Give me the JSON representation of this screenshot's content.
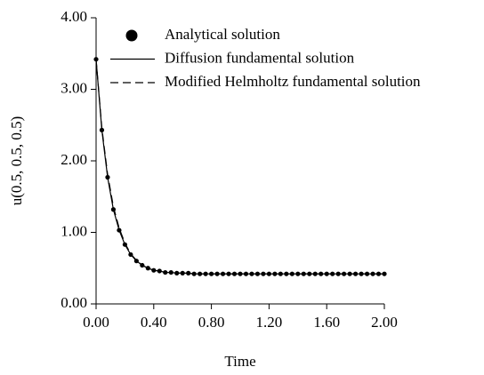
{
  "chart_data": {
    "type": "line",
    "x_label": "Time",
    "y_label": "u(0.5, 0.5, 0.5)",
    "x": [
      0,
      0.04,
      0.08,
      0.12,
      0.16,
      0.2,
      0.24,
      0.28,
      0.32,
      0.36,
      0.4,
      0.44,
      0.48,
      0.52,
      0.56,
      0.6,
      0.64,
      0.68,
      0.72,
      0.76,
      0.8,
      0.84,
      0.88,
      0.92,
      0.96,
      1,
      1.04,
      1.08,
      1.12,
      1.16,
      1.2,
      1.24,
      1.28,
      1.32,
      1.36,
      1.4,
      1.44,
      1.48,
      1.52,
      1.56,
      1.6,
      1.64,
      1.68,
      1.72,
      1.76,
      1.8,
      1.84,
      1.88,
      1.92,
      1.96,
      2
    ],
    "series": [
      {
        "name": "Analytical solution",
        "color": "#000000",
        "style": "dots",
        "values": [
          3.42,
          2.43,
          1.77,
          1.32,
          1.03,
          0.83,
          0.69,
          0.6,
          0.54,
          0.5,
          0.47,
          0.46,
          0.44,
          0.44,
          0.43,
          0.43,
          0.43,
          0.42,
          0.42,
          0.42,
          0.42,
          0.42,
          0.42,
          0.42,
          0.42,
          0.42,
          0.42,
          0.42,
          0.42,
          0.42,
          0.42,
          0.42,
          0.42,
          0.42,
          0.42,
          0.42,
          0.42,
          0.42,
          0.42,
          0.42,
          0.42,
          0.42,
          0.42,
          0.42,
          0.42,
          0.42,
          0.42,
          0.42,
          0.42,
          0.42,
          0.42
        ]
      },
      {
        "name": "Diffusion fundamental solution",
        "color": "#000000",
        "style": "solid",
        "values": [
          3.42,
          2.43,
          1.77,
          1.32,
          1.03,
          0.83,
          0.69,
          0.6,
          0.54,
          0.5,
          0.47,
          0.46,
          0.44,
          0.44,
          0.43,
          0.43,
          0.43,
          0.42,
          0.42,
          0.42,
          0.42,
          0.42,
          0.42,
          0.42,
          0.42,
          0.42,
          0.42,
          0.42,
          0.42,
          0.42,
          0.42,
          0.42,
          0.42,
          0.42,
          0.42,
          0.42,
          0.42,
          0.42,
          0.42,
          0.42,
          0.42,
          0.42,
          0.42,
          0.42,
          0.42,
          0.42,
          0.42,
          0.42,
          0.42,
          0.42,
          0.42
        ]
      },
      {
        "name": "Modified Helmholtz fundamental solution",
        "color": "#000000",
        "style": "dashed",
        "values": [
          3.42,
          2.46,
          1.81,
          1.36,
          1.06,
          0.85,
          0.7,
          0.61,
          0.54,
          0.5,
          0.47,
          0.46,
          0.44,
          0.44,
          0.43,
          0.43,
          0.43,
          0.42,
          0.42,
          0.42,
          0.42,
          0.42,
          0.42,
          0.42,
          0.42,
          0.42,
          0.42,
          0.42,
          0.42,
          0.42,
          0.42,
          0.42,
          0.42,
          0.42,
          0.42,
          0.42,
          0.42,
          0.42,
          0.42,
          0.42,
          0.42,
          0.42,
          0.42,
          0.42,
          0.42,
          0.42,
          0.42,
          0.42,
          0.42,
          0.42,
          0.42
        ]
      }
    ],
    "xlim": [
      0,
      2
    ],
    "ylim": [
      0,
      4
    ],
    "xticks": [
      {
        "value": 0,
        "label": "0.00"
      },
      {
        "value": 0.4,
        "label": "0.40"
      },
      {
        "value": 0.8,
        "label": "0.80"
      },
      {
        "value": 1.2,
        "label": "1.20"
      },
      {
        "value": 1.6,
        "label": "1.60"
      },
      {
        "value": 2,
        "label": "2.00"
      }
    ],
    "yticks": [
      {
        "value": 0,
        "label": "0.00"
      },
      {
        "value": 1,
        "label": "1.00"
      },
      {
        "value": 2,
        "label": "2.00"
      },
      {
        "value": 3,
        "label": "3.00"
      },
      {
        "value": 4,
        "label": "4.00"
      }
    ],
    "grid": false,
    "legend": "top-right"
  }
}
